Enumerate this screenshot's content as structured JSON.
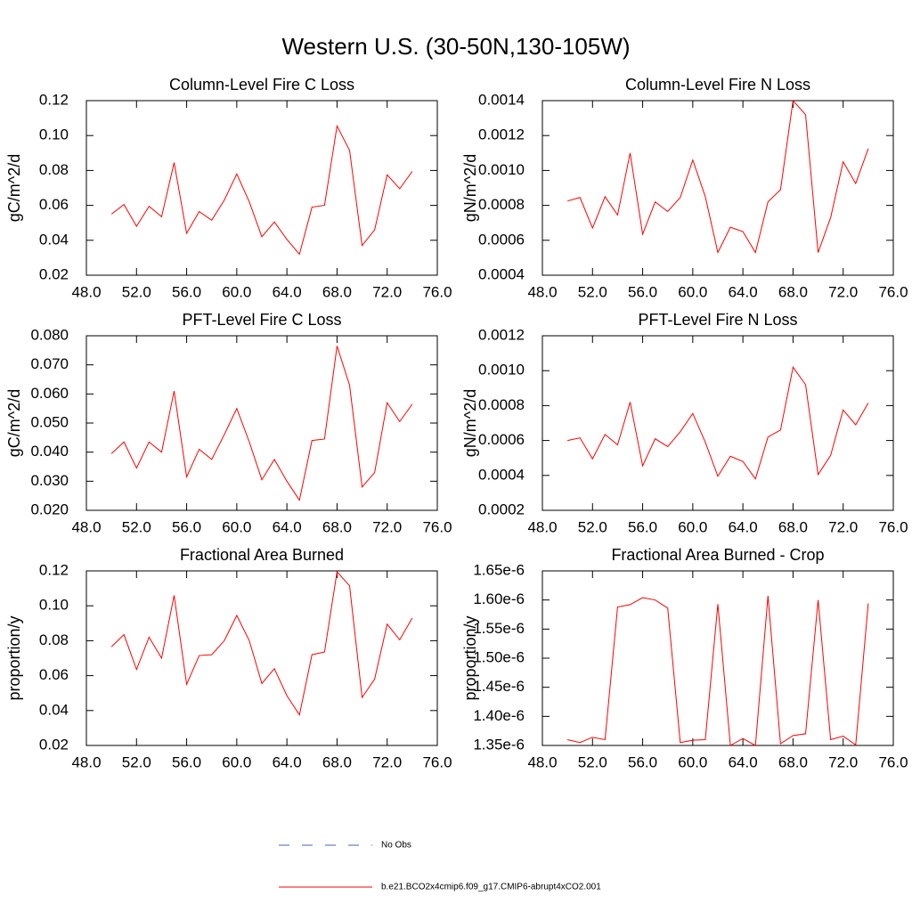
{
  "title": "Western U.S. (30-50N,130-105W)",
  "legend": [
    {
      "name": "No Obs",
      "color": "#4a5fb0",
      "dash": true
    },
    {
      "name": "b.e21.BCO2x4cmip6.f09_g17.CMIP6-abrupt4xCO2.001",
      "color": "#ff0000",
      "dash": false
    }
  ],
  "chart_data": [
    {
      "type": "line",
      "title": "Column-Level Fire C Loss",
      "y_label": "gC/m^2/d",
      "x": [
        50,
        51,
        52,
        53,
        54,
        55,
        56,
        57,
        58,
        59,
        60,
        61,
        62,
        63,
        64,
        65,
        66,
        67,
        68,
        69,
        70,
        71,
        72,
        73,
        74
      ],
      "series": [
        {
          "color": "#ff0000",
          "values": [
            0.055,
            0.0605,
            0.048,
            0.0595,
            0.0535,
            0.0845,
            0.044,
            0.0565,
            0.0515,
            0.063,
            0.078,
            0.062,
            0.042,
            0.0505,
            0.0405,
            0.032,
            0.059,
            0.06,
            0.1055,
            0.0915,
            0.037,
            0.046,
            0.0775,
            0.0695,
            0.0795
          ]
        }
      ],
      "xlim": [
        48,
        76
      ],
      "xticks": [
        {
          "value": 48,
          "label": "48.0"
        },
        {
          "value": 52,
          "label": "52.0"
        },
        {
          "value": 56,
          "label": "56.0"
        },
        {
          "value": 60,
          "label": "60.0"
        },
        {
          "value": 64,
          "label": "64.0"
        },
        {
          "value": 68,
          "label": "68.0"
        },
        {
          "value": 72,
          "label": "72.0"
        },
        {
          "value": 76,
          "label": "76.0"
        }
      ],
      "ylim": [
        0.02,
        0.12
      ],
      "yticks": [
        {
          "value": 0.02,
          "label": "0.02"
        },
        {
          "value": 0.04,
          "label": "0.04"
        },
        {
          "value": 0.06,
          "label": "0.06"
        },
        {
          "value": 0.08,
          "label": "0.08"
        },
        {
          "value": 0.1,
          "label": "0.10"
        },
        {
          "value": 0.12,
          "label": "0.12"
        }
      ]
    },
    {
      "type": "line",
      "title": "Column-Level Fire N Loss",
      "y_label": "gN/m^2/d",
      "x": [
        50,
        51,
        52,
        53,
        54,
        55,
        56,
        57,
        58,
        59,
        60,
        61,
        62,
        63,
        64,
        65,
        66,
        67,
        68,
        69,
        70,
        71,
        72,
        73,
        74
      ],
      "series": [
        {
          "color": "#ff0000",
          "values": [
            0.000825,
            0.000845,
            0.00067,
            0.00085,
            0.000745,
            0.0011,
            0.000635,
            0.00082,
            0.000765,
            0.000845,
            0.00106,
            0.00085,
            0.00053,
            0.000675,
            0.00065,
            0.00053,
            0.00082,
            0.00089,
            0.0014,
            0.00132,
            0.00053,
            0.00073,
            0.00105,
            0.000925,
            0.001125
          ]
        }
      ],
      "xlim": [
        48,
        76
      ],
      "xticks": [
        {
          "value": 48,
          "label": "48.0"
        },
        {
          "value": 52,
          "label": "52.0"
        },
        {
          "value": 56,
          "label": "56.0"
        },
        {
          "value": 60,
          "label": "60.0"
        },
        {
          "value": 64,
          "label": "64.0"
        },
        {
          "value": 68,
          "label": "68.0"
        },
        {
          "value": 72,
          "label": "72.0"
        },
        {
          "value": 76,
          "label": "76.0"
        }
      ],
      "ylim": [
        0.0004,
        0.0014
      ],
      "yticks": [
        {
          "value": 0.0004,
          "label": "0.0004"
        },
        {
          "value": 0.0006,
          "label": "0.0006"
        },
        {
          "value": 0.0008,
          "label": "0.0008"
        },
        {
          "value": 0.001,
          "label": "0.0010"
        },
        {
          "value": 0.0012,
          "label": "0.0012"
        },
        {
          "value": 0.0014,
          "label": "0.0014"
        }
      ]
    },
    {
      "type": "line",
      "title": "PFT-Level Fire C Loss",
      "y_label": "gC/m^2/d",
      "x": [
        50,
        51,
        52,
        53,
        54,
        55,
        56,
        57,
        58,
        59,
        60,
        61,
        62,
        63,
        64,
        65,
        66,
        67,
        68,
        69,
        70,
        71,
        72,
        73,
        74
      ],
      "series": [
        {
          "color": "#ff0000",
          "values": [
            0.0395,
            0.0435,
            0.0345,
            0.0435,
            0.04,
            0.061,
            0.0315,
            0.041,
            0.0375,
            0.046,
            0.055,
            0.0435,
            0.0305,
            0.0375,
            0.03,
            0.0235,
            0.044,
            0.0445,
            0.0765,
            0.063,
            0.028,
            0.033,
            0.057,
            0.0505,
            0.0565
          ]
        }
      ],
      "xlim": [
        48,
        76
      ],
      "xticks": [
        {
          "value": 48,
          "label": "48.0"
        },
        {
          "value": 52,
          "label": "52.0"
        },
        {
          "value": 56,
          "label": "56.0"
        },
        {
          "value": 60,
          "label": "60.0"
        },
        {
          "value": 64,
          "label": "64.0"
        },
        {
          "value": 68,
          "label": "68.0"
        },
        {
          "value": 72,
          "label": "72.0"
        },
        {
          "value": 76,
          "label": "76.0"
        }
      ],
      "ylim": [
        0.02,
        0.08
      ],
      "yticks": [
        {
          "value": 0.02,
          "label": "0.020"
        },
        {
          "value": 0.03,
          "label": "0.030"
        },
        {
          "value": 0.04,
          "label": "0.040"
        },
        {
          "value": 0.05,
          "label": "0.050"
        },
        {
          "value": 0.06,
          "label": "0.060"
        },
        {
          "value": 0.07,
          "label": "0.070"
        },
        {
          "value": 0.08,
          "label": "0.080"
        }
      ]
    },
    {
      "type": "line",
      "title": "PFT-Level Fire N Loss",
      "y_label": "gN/m^2/d",
      "x": [
        50,
        51,
        52,
        53,
        54,
        55,
        56,
        57,
        58,
        59,
        60,
        61,
        62,
        63,
        64,
        65,
        66,
        67,
        68,
        69,
        70,
        71,
        72,
        73,
        74
      ],
      "series": [
        {
          "color": "#ff0000",
          "values": [
            0.0006,
            0.000615,
            0.000495,
            0.000635,
            0.000575,
            0.00082,
            0.000455,
            0.00061,
            0.000565,
            0.00065,
            0.000755,
            0.00059,
            0.000395,
            0.00051,
            0.00048,
            0.00038,
            0.00062,
            0.00066,
            0.00102,
            0.00092,
            0.000405,
            0.000515,
            0.000775,
            0.00069,
            0.000815
          ]
        }
      ],
      "xlim": [
        48,
        76
      ],
      "xticks": [
        {
          "value": 48,
          "label": "48.0"
        },
        {
          "value": 52,
          "label": "52.0"
        },
        {
          "value": 56,
          "label": "56.0"
        },
        {
          "value": 60,
          "label": "60.0"
        },
        {
          "value": 64,
          "label": "64.0"
        },
        {
          "value": 68,
          "label": "68.0"
        },
        {
          "value": 72,
          "label": "72.0"
        },
        {
          "value": 76,
          "label": "76.0"
        }
      ],
      "ylim": [
        0.0002,
        0.0012
      ],
      "yticks": [
        {
          "value": 0.0002,
          "label": "0.0002"
        },
        {
          "value": 0.0004,
          "label": "0.0004"
        },
        {
          "value": 0.0006,
          "label": "0.0006"
        },
        {
          "value": 0.0008,
          "label": "0.0008"
        },
        {
          "value": 0.001,
          "label": "0.0010"
        },
        {
          "value": 0.0012,
          "label": "0.0012"
        }
      ]
    },
    {
      "type": "line",
      "title": "Fractional Area Burned",
      "y_label": "proportion/y",
      "x": [
        50,
        51,
        52,
        53,
        54,
        55,
        56,
        57,
        58,
        59,
        60,
        61,
        62,
        63,
        64,
        65,
        66,
        67,
        68,
        69,
        70,
        71,
        72,
        73,
        74
      ],
      "series": [
        {
          "color": "#ff0000",
          "values": [
            0.0765,
            0.0835,
            0.0635,
            0.082,
            0.07,
            0.106,
            0.055,
            0.0715,
            0.072,
            0.08,
            0.0945,
            0.08,
            0.0555,
            0.064,
            0.0485,
            0.0375,
            0.072,
            0.0735,
            0.1195,
            0.1115,
            0.0475,
            0.058,
            0.0895,
            0.0805,
            0.093
          ]
        }
      ],
      "xlim": [
        48,
        76
      ],
      "xticks": [
        {
          "value": 48,
          "label": "48.0"
        },
        {
          "value": 52,
          "label": "52.0"
        },
        {
          "value": 56,
          "label": "56.0"
        },
        {
          "value": 60,
          "label": "60.0"
        },
        {
          "value": 64,
          "label": "64.0"
        },
        {
          "value": 68,
          "label": "68.0"
        },
        {
          "value": 72,
          "label": "72.0"
        },
        {
          "value": 76,
          "label": "76.0"
        }
      ],
      "ylim": [
        0.02,
        0.12
      ],
      "yticks": [
        {
          "value": 0.02,
          "label": "0.02"
        },
        {
          "value": 0.04,
          "label": "0.04"
        },
        {
          "value": 0.06,
          "label": "0.06"
        },
        {
          "value": 0.08,
          "label": "0.08"
        },
        {
          "value": 0.1,
          "label": "0.10"
        },
        {
          "value": 0.12,
          "label": "0.12"
        }
      ]
    },
    {
      "type": "line",
      "title": "Fractional Area Burned - Crop",
      "y_label": "proportion/y",
      "x": [
        50,
        51,
        52,
        53,
        54,
        55,
        56,
        57,
        58,
        59,
        60,
        61,
        62,
        63,
        64,
        65,
        66,
        67,
        68,
        69,
        70,
        71,
        72,
        73,
        74
      ],
      "series": [
        {
          "color": "#ff0000",
          "values": [
            1.36e-06,
            1.355e-06,
            1.364e-06,
            1.36e-06,
            1.588e-06,
            1.592e-06,
            1.604e-06,
            1.6e-06,
            1.586e-06,
            1.355e-06,
            1.359e-06,
            1.36e-06,
            1.593e-06,
            1.35e-06,
            1.362e-06,
            1.35e-06,
            1.607e-06,
            1.353e-06,
            1.367e-06,
            1.37e-06,
            1.6e-06,
            1.36e-06,
            1.366e-06,
            1.351e-06,
            1.594e-06
          ]
        }
      ],
      "xlim": [
        48,
        76
      ],
      "xticks": [
        {
          "value": 48,
          "label": "48.0"
        },
        {
          "value": 52,
          "label": "52.0"
        },
        {
          "value": 56,
          "label": "56.0"
        },
        {
          "value": 60,
          "label": "60.0"
        },
        {
          "value": 64,
          "label": "64.0"
        },
        {
          "value": 68,
          "label": "68.0"
        },
        {
          "value": 72,
          "label": "72.0"
        },
        {
          "value": 76,
          "label": "76.0"
        }
      ],
      "ylim": [
        1.35e-06,
        1.65e-06
      ],
      "yticks": [
        {
          "value": 1.35e-06,
          "label": "1.35e-6"
        },
        {
          "value": 1.4e-06,
          "label": "1.40e-6"
        },
        {
          "value": 1.45e-06,
          "label": "1.45e-6"
        },
        {
          "value": 1.5e-06,
          "label": "1.50e-6"
        },
        {
          "value": 1.55e-06,
          "label": "1.55e-6"
        },
        {
          "value": 1.6e-06,
          "label": "1.60e-6"
        },
        {
          "value": 1.65e-06,
          "label": "1.65e-6"
        }
      ]
    }
  ]
}
